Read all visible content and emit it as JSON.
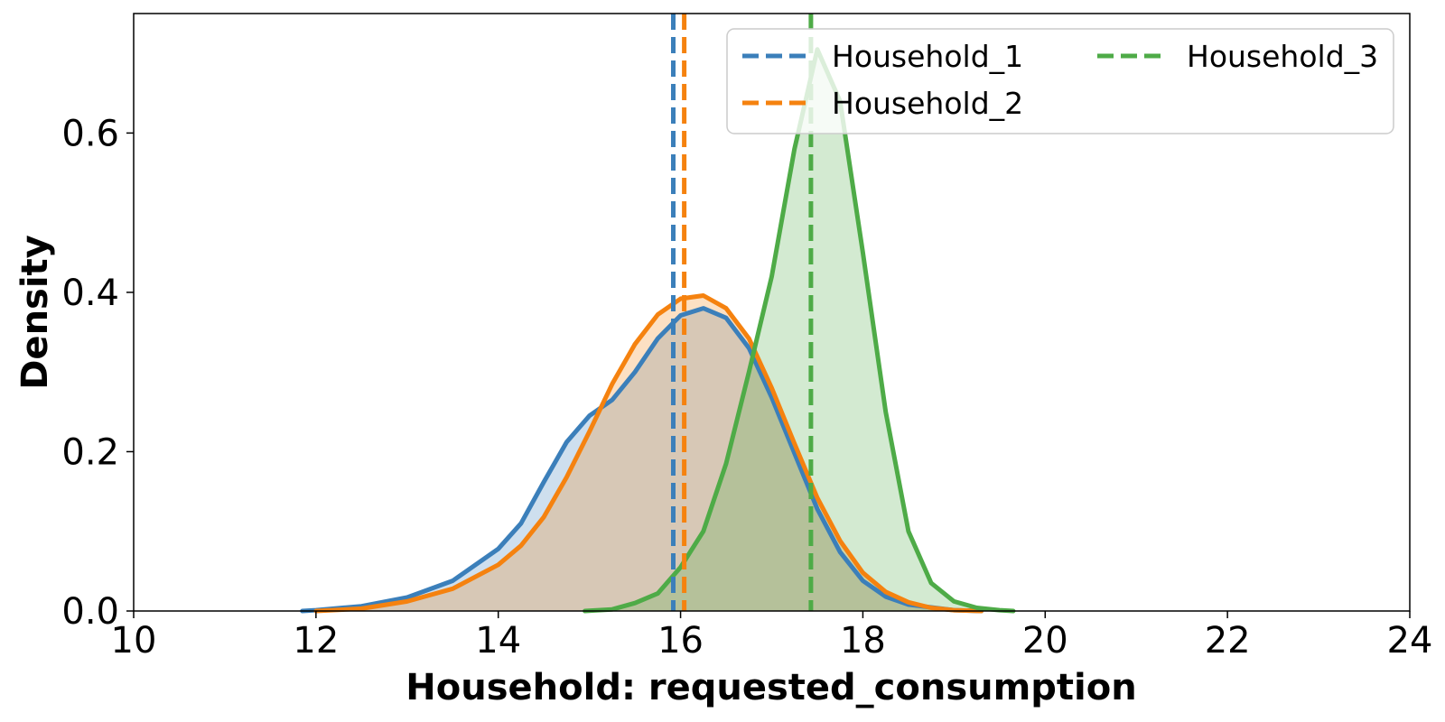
{
  "chart_data": {
    "type": "area",
    "xlabel": "Household: requested_consumption",
    "ylabel": "Density",
    "xlim": [
      10,
      24
    ],
    "ylim": [
      0,
      0.75
    ],
    "xticks": [
      "10",
      "12",
      "14",
      "16",
      "18",
      "20",
      "22",
      "24"
    ],
    "yticks": [
      "0.0",
      "0.2",
      "0.4",
      "0.6"
    ],
    "grid": false,
    "legend": {
      "placement": "top-right",
      "columns": 2,
      "style": "dashed"
    },
    "series": [
      {
        "name": "Household_1",
        "color": "#3b7fba",
        "mean": 15.92,
        "points": [
          [
            11.85,
            0.0
          ],
          [
            12.0,
            0.001
          ],
          [
            12.5,
            0.006
          ],
          [
            13.0,
            0.017
          ],
          [
            13.5,
            0.038
          ],
          [
            14.0,
            0.078
          ],
          [
            14.25,
            0.11
          ],
          [
            14.5,
            0.162
          ],
          [
            14.75,
            0.212
          ],
          [
            15.0,
            0.245
          ],
          [
            15.25,
            0.265
          ],
          [
            15.5,
            0.3
          ],
          [
            15.75,
            0.342
          ],
          [
            16.0,
            0.371
          ],
          [
            16.25,
            0.38
          ],
          [
            16.5,
            0.368
          ],
          [
            16.75,
            0.33
          ],
          [
            17.0,
            0.268
          ],
          [
            17.25,
            0.198
          ],
          [
            17.5,
            0.128
          ],
          [
            17.75,
            0.074
          ],
          [
            18.0,
            0.038
          ],
          [
            18.25,
            0.018
          ],
          [
            18.5,
            0.008
          ],
          [
            19.0,
            0.001
          ],
          [
            19.3,
            0.0
          ]
        ]
      },
      {
        "name": "Household_2",
        "color": "#f5820f",
        "mean": 16.04,
        "points": [
          [
            12.0,
            0.0
          ],
          [
            12.5,
            0.003
          ],
          [
            13.0,
            0.012
          ],
          [
            13.5,
            0.028
          ],
          [
            14.0,
            0.058
          ],
          [
            14.25,
            0.082
          ],
          [
            14.5,
            0.118
          ],
          [
            14.75,
            0.168
          ],
          [
            15.0,
            0.225
          ],
          [
            15.25,
            0.285
          ],
          [
            15.5,
            0.335
          ],
          [
            15.75,
            0.372
          ],
          [
            16.0,
            0.392
          ],
          [
            16.25,
            0.396
          ],
          [
            16.5,
            0.38
          ],
          [
            16.75,
            0.342
          ],
          [
            17.0,
            0.28
          ],
          [
            17.25,
            0.21
          ],
          [
            17.5,
            0.142
          ],
          [
            17.75,
            0.088
          ],
          [
            18.0,
            0.048
          ],
          [
            18.25,
            0.024
          ],
          [
            18.5,
            0.011
          ],
          [
            18.75,
            0.004
          ],
          [
            19.0,
            0.001
          ],
          [
            19.3,
            0.0
          ]
        ]
      },
      {
        "name": "Household_3",
        "color": "#4eab47",
        "mean": 17.43,
        "points": [
          [
            14.95,
            0.0
          ],
          [
            15.25,
            0.002
          ],
          [
            15.5,
            0.01
          ],
          [
            15.75,
            0.022
          ],
          [
            16.0,
            0.055
          ],
          [
            16.25,
            0.1
          ],
          [
            16.5,
            0.185
          ],
          [
            16.75,
            0.3
          ],
          [
            17.0,
            0.42
          ],
          [
            17.25,
            0.58
          ],
          [
            17.5,
            0.705
          ],
          [
            17.75,
            0.64
          ],
          [
            18.0,
            0.45
          ],
          [
            18.25,
            0.25
          ],
          [
            18.5,
            0.1
          ],
          [
            18.75,
            0.035
          ],
          [
            19.0,
            0.012
          ],
          [
            19.25,
            0.004
          ],
          [
            19.5,
            0.001
          ],
          [
            19.65,
            0.0
          ]
        ]
      }
    ]
  }
}
